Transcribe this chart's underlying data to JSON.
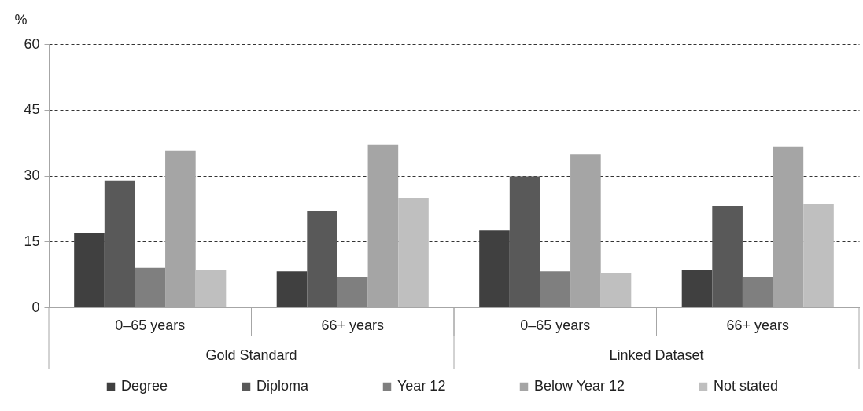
{
  "chart_data": {
    "type": "bar",
    "ylabel": "%",
    "categories": [
      "0–65 years",
      "66+ years",
      "0–65 years",
      "66+ years"
    ],
    "annotations": [
      "Gold Standard",
      "Linked Dataset"
    ],
    "series": [
      {
        "name": "Degree",
        "color": "#404040",
        "values": [
          17.0,
          8.2,
          17.5,
          8.5
        ]
      },
      {
        "name": "Diploma",
        "color": "#595959",
        "values": [
          28.9,
          22.0,
          29.8,
          23.1
        ]
      },
      {
        "name": "Year 12",
        "color": "#7f7f7f",
        "values": [
          9.0,
          6.8,
          8.2,
          6.8
        ]
      },
      {
        "name": "Below Year 12",
        "color": "#a5a5a5",
        "values": [
          35.7,
          37.1,
          34.9,
          36.6
        ]
      },
      {
        "name": "Not stated",
        "color": "#bfbfbf",
        "values": [
          8.4,
          24.9,
          7.9,
          23.5
        ]
      }
    ],
    "ylim": [
      0,
      60
    ],
    "yticks": [
      0,
      15,
      30,
      45,
      60
    ],
    "grid": "y",
    "legend": "bottom"
  }
}
